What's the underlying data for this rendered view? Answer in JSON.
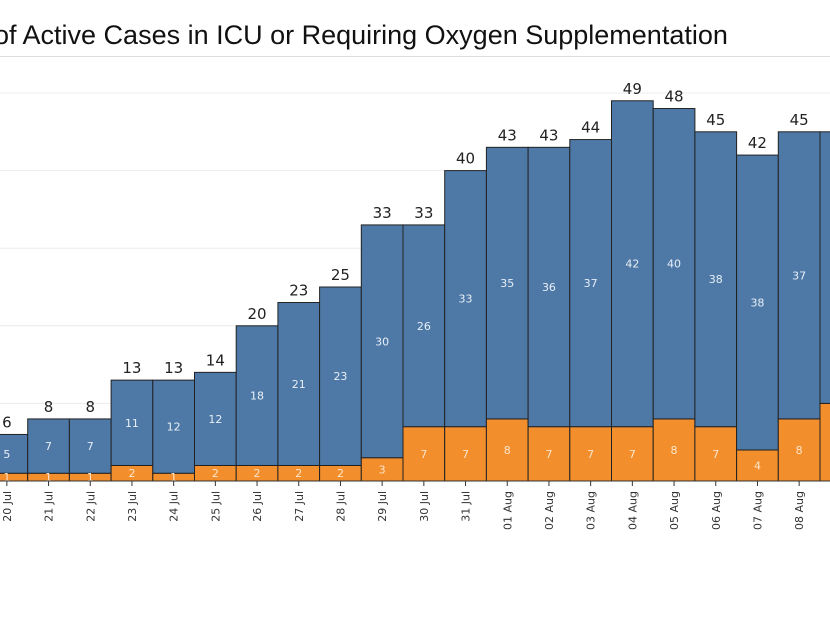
{
  "chart_data": {
    "type": "bar",
    "stacked": true,
    "title": "of Active Cases in ICU or Requiring Oxygen Supplementation",
    "ylim": [
      0,
      50
    ],
    "grid": true,
    "colors": {
      "lower": "#f28e2b",
      "upper": "#4e79a7"
    },
    "categories": [
      "20 Jul",
      "21 Jul",
      "22 Jul",
      "23 Jul",
      "24 Jul",
      "25 Jul",
      "26 Jul",
      "27 Jul",
      "28 Jul",
      "29 Jul",
      "30 Jul",
      "31 Jul",
      "01 Aug",
      "02 Aug",
      "03 Aug",
      "04 Aug",
      "05 Aug",
      "06 Aug",
      "07 Aug",
      "08 Aug",
      ""
    ],
    "series": [
      {
        "values": [
          1,
          1,
          1,
          2,
          1,
          2,
          2,
          2,
          2,
          3,
          7,
          7,
          8,
          7,
          7,
          7,
          8,
          7,
          4,
          8,
          10
        ]
      },
      {
        "values": [
          5,
          7,
          7,
          11,
          12,
          12,
          18,
          21,
          23,
          30,
          26,
          33,
          35,
          36,
          37,
          42,
          40,
          38,
          38,
          37,
          35
        ]
      }
    ],
    "totals": [
      6,
      8,
      8,
      13,
      13,
      14,
      20,
      23,
      25,
      33,
      33,
      40,
      43,
      43,
      44,
      49,
      48,
      45,
      42,
      45,
      45
    ]
  }
}
